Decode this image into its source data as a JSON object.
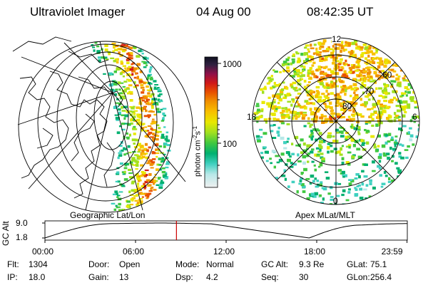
{
  "header": {
    "title": "Ultraviolet Imager",
    "date": "04 Aug 00",
    "time": "08:42:35 UT"
  },
  "left_panel": {
    "caption": "Geographic Lat/Lon"
  },
  "right_panel": {
    "caption": "Apex MLat/MLT",
    "mlt_labels": [
      "12",
      "18",
      "6",
      "0"
    ],
    "lat_labels": [
      "60",
      "70",
      "80"
    ]
  },
  "colorbar": {
    "unit_label": "photon cm",
    "unit_exp1": "-2",
    "unit_mid": "s",
    "unit_exp2": "-1",
    "ticks": [
      "1000",
      "100"
    ],
    "scale": "log",
    "colors": [
      "#e8e8e8",
      "#b8e8e8",
      "#40d0c0",
      "#00b070",
      "#40c840",
      "#a0e020",
      "#e8e800",
      "#f8c000",
      "#f09000",
      "#e85000",
      "#d01818",
      "#901048",
      "#302040",
      "#101020"
    ]
  },
  "timeline": {
    "ylabel": "GC Alt",
    "ytick_top": "9.0",
    "ytick_bottom": "1.8",
    "xticks": [
      "00:00",
      "06:00",
      "12:00",
      "18:00",
      "23:59"
    ],
    "current_time_hours": 8.71,
    "marker_color": "#cc0000",
    "curve": [
      {
        "t": 0,
        "alt": 1.8
      },
      {
        "t": 4.5,
        "alt": 9.0
      },
      {
        "t": 8,
        "alt": 9.3
      },
      {
        "t": 11,
        "alt": 8.9
      },
      {
        "t": 17.5,
        "alt": 1.8
      },
      {
        "t": 21,
        "alt": 8.3
      },
      {
        "t": 23.98,
        "alt": 9.0
      }
    ]
  },
  "footer": {
    "row1": [
      {
        "label": "Flt:",
        "value": "1304"
      },
      {
        "label": "Door:",
        "value": "Open"
      },
      {
        "label": "Mode:",
        "value": "Normal"
      },
      {
        "label": "GC Alt:",
        "value": "9.3 Re"
      },
      {
        "label": "GLat:",
        "value": "75.1"
      }
    ],
    "row2": [
      {
        "label": "IP:",
        "value": "18.0"
      },
      {
        "label": "Gain:",
        "value": "13"
      },
      {
        "label": "Dsp:",
        "value": "4.2"
      },
      {
        "label": "Seq:",
        "value": "30"
      },
      {
        "label": "GLon:",
        "value": "256.4"
      }
    ]
  }
}
